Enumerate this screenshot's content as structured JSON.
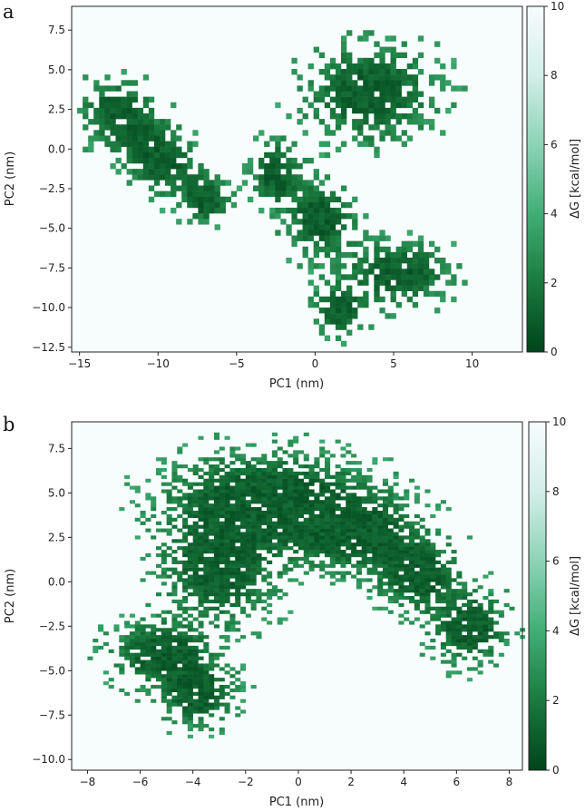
{
  "figure": {
    "panels_label": [
      "a",
      "b"
    ]
  },
  "colors": {
    "background": "#f7fcfd",
    "cmap_low": "#00441b",
    "cmap_mid": "#41ae76",
    "cmap_high": "#f7fcfd"
  },
  "chart_data": [
    {
      "type": "heatmap",
      "panel": "a",
      "xlabel": "PC1 (nm)",
      "ylabel": "PC2 (nm)",
      "xlim": [
        -15.5,
        13.2
      ],
      "ylim": [
        -12.8,
        9.0
      ],
      "xticks": [
        -15,
        -10,
        -5,
        0,
        5,
        10
      ],
      "xtick_labels": [
        "−15",
        "−10",
        "−5",
        "0",
        "5",
        "10"
      ],
      "yticks": [
        -12.5,
        -10.0,
        -7.5,
        -5.0,
        -2.5,
        0.0,
        2.5,
        5.0,
        7.5
      ],
      "ytick_labels": [
        "−12.5",
        "−10.0",
        "−7.5",
        "−5.0",
        "−2.5",
        "0.0",
        "2.5",
        "5.0",
        "7.5"
      ],
      "bin_size": 0.35,
      "colorbar": {
        "label": "ΔG [kcal/mol]",
        "range": [
          0,
          10
        ],
        "ticks": [
          0,
          2,
          4,
          6,
          8,
          10
        ],
        "tick_labels": [
          "0",
          "2",
          "4",
          "6",
          "8",
          "10"
        ]
      },
      "basins": [
        {
          "center": [
            -12.5,
            2.2
          ],
          "sx": 1.5,
          "sy": 1.3,
          "rot": -0.55
        },
        {
          "center": [
            -9.8,
            -0.6
          ],
          "sx": 1.6,
          "sy": 1.3,
          "rot": -0.5
        },
        {
          "center": [
            -7.0,
            -3.2
          ],
          "sx": 1.0,
          "sy": 0.9,
          "rot": -0.4
        },
        {
          "center": [
            3.5,
            3.5
          ],
          "sx": 2.6,
          "sy": 1.9,
          "rot": 0.0
        },
        {
          "center": [
            0.3,
            -4.4
          ],
          "sx": 1.4,
          "sy": 1.5,
          "rot": 0.0
        },
        {
          "center": [
            5.2,
            -7.8
          ],
          "sx": 2.2,
          "sy": 1.2,
          "rot": 0.0
        },
        {
          "center": [
            -2.5,
            -1.5
          ],
          "sx": 1.0,
          "sy": 1.2,
          "rot": 0.0
        },
        {
          "center": [
            1.5,
            -10.2
          ],
          "sx": 1.1,
          "sy": 0.9,
          "rot": 0.0
        }
      ]
    },
    {
      "type": "heatmap",
      "panel": "b",
      "xlabel": "PC1 (nm)",
      "ylabel": "PC2 (nm)",
      "xlim": [
        -8.6,
        8.5
      ],
      "ylim": [
        -10.6,
        9.0
      ],
      "xticks": [
        -8,
        -6,
        -4,
        -2,
        0,
        2,
        4,
        6,
        8
      ],
      "xtick_labels": [
        "−8",
        "−6",
        "−4",
        "−2",
        "0",
        "2",
        "4",
        "6",
        "8"
      ],
      "yticks": [
        -10.0,
        -7.5,
        -5.0,
        -2.5,
        0.0,
        2.5,
        5.0,
        7.5
      ],
      "ytick_labels": [
        "−10.0",
        "−7.5",
        "−5.0",
        "−2.5",
        "0.0",
        "2.5",
        "5.0",
        "7.5"
      ],
      "bin_size": 0.2,
      "colorbar": {
        "label": "ΔG [kcal/mol]",
        "range": [
          0,
          10
        ],
        "ticks": [
          0,
          2,
          4,
          6,
          8,
          10
        ],
        "tick_labels": [
          "0",
          "2",
          "4",
          "6",
          "8",
          "10"
        ]
      },
      "basins": [
        {
          "center": [
            -5.2,
            -4.0
          ],
          "sx": 1.2,
          "sy": 1.1,
          "rot": 0.0
        },
        {
          "center": [
            -3.0,
            0.8
          ],
          "sx": 1.4,
          "sy": 2.0,
          "rot": 0.0
        },
        {
          "center": [
            -1.2,
            4.8
          ],
          "sx": 2.4,
          "sy": 1.6,
          "rot": 0.0
        },
        {
          "center": [
            2.0,
            2.8
          ],
          "sx": 1.6,
          "sy": 1.4,
          "rot": 0.0
        },
        {
          "center": [
            4.6,
            0.4
          ],
          "sx": 1.0,
          "sy": 1.3,
          "rot": 0.0
        },
        {
          "center": [
            6.5,
            -2.6
          ],
          "sx": 0.9,
          "sy": 1.3,
          "rot": 0.0
        },
        {
          "center": [
            -3.8,
            -6.3
          ],
          "sx": 0.9,
          "sy": 1.1,
          "rot": 0.0
        }
      ]
    }
  ]
}
